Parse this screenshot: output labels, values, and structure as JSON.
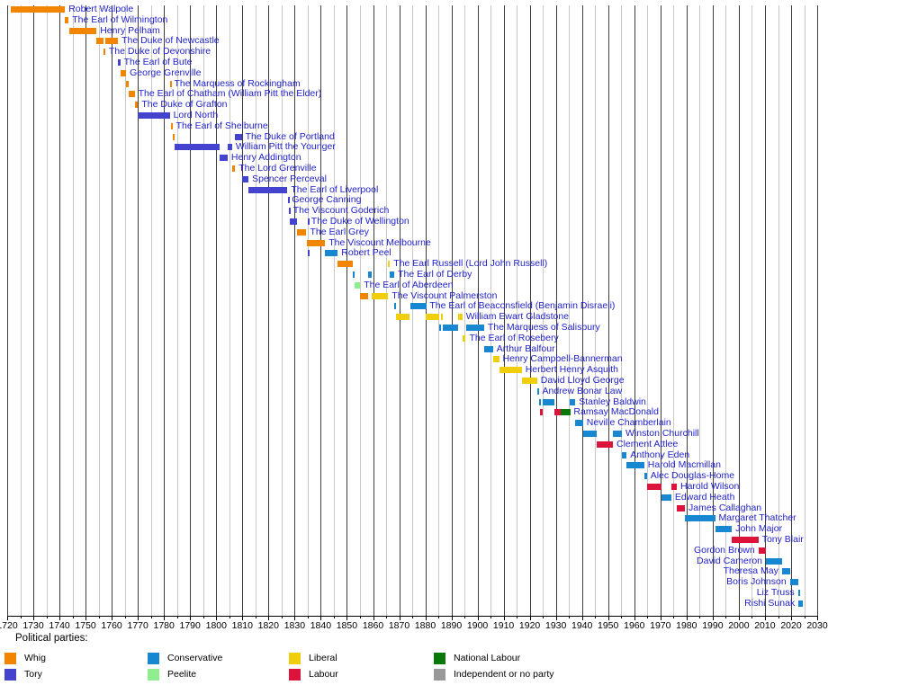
{
  "legend": {
    "title": "Political parties:",
    "items": [
      {
        "id": "whig",
        "label": "Whig",
        "color": "#F28500"
      },
      {
        "id": "tory",
        "label": "Tory",
        "color": "#4343CE"
      },
      {
        "id": "conservative",
        "label": "Conservative",
        "color": "#1787D2"
      },
      {
        "id": "peelite",
        "label": "Peelite",
        "color": "#90EE90"
      },
      {
        "id": "liberal",
        "label": "Liberal",
        "color": "#F0CE0C"
      },
      {
        "id": "labour",
        "label": "Labour",
        "color": "#DC143C"
      },
      {
        "id": "national-labour",
        "label": "National Labour",
        "color": "#087808"
      },
      {
        "id": "independent",
        "label": "Independent or no party",
        "color": "#999999"
      }
    ]
  },
  "chart_data": {
    "type": "timeline",
    "title": "",
    "xlabel": "",
    "ylabel": "",
    "x_axis": {
      "min": 1720,
      "max": 2030,
      "major_tick": 10,
      "minor_tick": 5,
      "tick_labels": [
        1720,
        1730,
        1740,
        1750,
        1760,
        1770,
        1780,
        1790,
        1800,
        1810,
        1820,
        1830,
        1840,
        1850,
        1860,
        1870,
        1880,
        1890,
        1900,
        1910,
        1920,
        1930,
        1940,
        1950,
        1960,
        1970,
        1980,
        1990,
        2000,
        2010,
        2020,
        2030
      ]
    },
    "grid": {
      "major_color": "#3d3d3d",
      "minor_color": "#c9c9c9"
    },
    "label_color": "#2222cc",
    "party_colors": {
      "Whig": "#F28500",
      "Tory": "#4343CE",
      "Conservative": "#1787D2",
      "Peelite": "#90EE90",
      "Liberal": "#F0CE0C",
      "Labour": "#DC143C",
      "National Labour": "#087808",
      "Independent or no party": "#999999"
    },
    "prime_ministers": [
      {
        "name": "Robert Walpole",
        "label_side": "right",
        "terms": [
          {
            "party": "Whig",
            "start": 1721.27,
            "end": 1742.1
          }
        ]
      },
      {
        "name": "The Earl of Wilmington",
        "label_side": "right",
        "terms": [
          {
            "party": "Whig",
            "start": 1742.12,
            "end": 1743.5
          }
        ]
      },
      {
        "name": "Henry Pelham",
        "label_side": "right",
        "terms": [
          {
            "party": "Whig",
            "start": 1743.65,
            "end": 1754.17
          }
        ]
      },
      {
        "name": "The Duke of Newcastle",
        "label_side": "right",
        "terms": [
          {
            "party": "Whig",
            "start": 1754.2,
            "end": 1756.85
          },
          {
            "party": "Whig",
            "start": 1757.5,
            "end": 1762.4
          }
        ]
      },
      {
        "name": "The Duke of Devonshire",
        "label_side": "right",
        "terms": [
          {
            "party": "Whig",
            "start": 1756.85,
            "end": 1757.5
          }
        ]
      },
      {
        "name": "The Earl of Bute",
        "label_side": "right",
        "terms": [
          {
            "party": "Tory",
            "start": 1762.4,
            "end": 1763.27
          }
        ]
      },
      {
        "name": "George Grenville",
        "label_side": "right",
        "terms": [
          {
            "party": "Whig",
            "start": 1763.28,
            "end": 1765.5
          }
        ]
      },
      {
        "name": "The Marquess of Rockingham",
        "label_side": "right",
        "terms": [
          {
            "party": "Whig",
            "start": 1765.55,
            "end": 1766.58
          },
          {
            "party": "Whig",
            "start": 1782.22,
            "end": 1782.5
          }
        ]
      },
      {
        "name": "The Earl of Chatham (William Pitt the Elder)",
        "label_side": "right",
        "terms": [
          {
            "party": "Whig",
            "start": 1766.58,
            "end": 1768.78
          }
        ]
      },
      {
        "name": "The Duke of Grafton",
        "label_side": "right",
        "terms": [
          {
            "party": "Whig",
            "start": 1768.78,
            "end": 1770.07
          }
        ]
      },
      {
        "name": "Lord North",
        "label_side": "right",
        "terms": [
          {
            "party": "Tory",
            "start": 1770.07,
            "end": 1782.22
          }
        ]
      },
      {
        "name": "The Earl of Shelburne",
        "label_side": "right",
        "terms": [
          {
            "party": "Whig",
            "start": 1782.5,
            "end": 1783.25
          }
        ]
      },
      {
        "name": "The Duke of Portland",
        "label_side": "right",
        "terms": [
          {
            "party": "Whig",
            "start": 1783.25,
            "end": 1783.95
          },
          {
            "party": "Tory",
            "start": 1807.25,
            "end": 1809.75
          }
        ]
      },
      {
        "name": "William Pitt the Younger",
        "label_side": "right",
        "terms": [
          {
            "party": "Tory",
            "start": 1783.95,
            "end": 1801.2
          },
          {
            "party": "Tory",
            "start": 1804.35,
            "end": 1806.07
          }
        ]
      },
      {
        "name": "Henry Addington",
        "label_side": "right",
        "terms": [
          {
            "party": "Tory",
            "start": 1801.2,
            "end": 1804.35
          }
        ]
      },
      {
        "name": "The Lord Grenville",
        "label_side": "right",
        "terms": [
          {
            "party": "Whig",
            "start": 1806.1,
            "end": 1807.23
          }
        ]
      },
      {
        "name": "Spencer Perceval",
        "label_side": "right",
        "terms": [
          {
            "party": "Tory",
            "start": 1809.75,
            "end": 1812.36
          }
        ]
      },
      {
        "name": "The Earl of Liverpool",
        "label_side": "right",
        "terms": [
          {
            "party": "Tory",
            "start": 1812.43,
            "end": 1827.27
          }
        ]
      },
      {
        "name": "George Canning",
        "label_side": "right",
        "terms": [
          {
            "party": "Tory",
            "start": 1827.28,
            "end": 1827.6
          }
        ]
      },
      {
        "name": "The Viscount Goderich",
        "label_side": "right",
        "terms": [
          {
            "party": "Tory",
            "start": 1827.65,
            "end": 1828.06
          }
        ]
      },
      {
        "name": "The Duke of Wellington",
        "label_side": "right",
        "terms": [
          {
            "party": "Tory",
            "start": 1828.06,
            "end": 1830.88
          },
          {
            "party": "Tory",
            "start": 1834.87,
            "end": 1834.96
          }
        ]
      },
      {
        "name": "The Earl Grey",
        "label_side": "right",
        "terms": [
          {
            "party": "Whig",
            "start": 1830.88,
            "end": 1834.53
          }
        ]
      },
      {
        "name": "The Viscount Melbourne",
        "label_side": "right",
        "terms": [
          {
            "party": "Whig",
            "start": 1834.54,
            "end": 1834.87
          },
          {
            "party": "Whig",
            "start": 1835.3,
            "end": 1841.66
          }
        ]
      },
      {
        "name": "Robert Peel",
        "label_side": "right",
        "terms": [
          {
            "party": "Tory",
            "start": 1834.94,
            "end": 1835.27
          },
          {
            "party": "Conservative",
            "start": 1841.66,
            "end": 1846.5
          }
        ]
      },
      {
        "name": "The Earl Russell (Lord John Russell)",
        "label_side": "right",
        "terms": [
          {
            "party": "Whig",
            "start": 1846.5,
            "end": 1852.15
          },
          {
            "party": "Liberal",
            "start": 1865.82,
            "end": 1866.5
          }
        ]
      },
      {
        "name": "The Earl of Derby",
        "label_side": "right",
        "terms": [
          {
            "party": "Conservative",
            "start": 1852.15,
            "end": 1852.97
          },
          {
            "party": "Conservative",
            "start": 1858.15,
            "end": 1859.45
          },
          {
            "party": "Conservative",
            "start": 1866.5,
            "end": 1868.15
          }
        ]
      },
      {
        "name": "The Earl of Aberdeen",
        "label_side": "right",
        "terms": [
          {
            "party": "Peelite",
            "start": 1852.97,
            "end": 1855.1
          }
        ]
      },
      {
        "name": "The Viscount Palmerston",
        "label_side": "right",
        "terms": [
          {
            "party": "Whig",
            "start": 1855.1,
            "end": 1858.15
          },
          {
            "party": "Liberal",
            "start": 1859.45,
            "end": 1865.8
          }
        ]
      },
      {
        "name": "The Earl of Beaconsfield (Benjamin Disraeli)",
        "label_side": "right",
        "terms": [
          {
            "party": "Conservative",
            "start": 1868.15,
            "end": 1868.92
          },
          {
            "party": "Conservative",
            "start": 1874.13,
            "end": 1880.32
          }
        ]
      },
      {
        "name": "William Ewart Gladstone",
        "label_side": "right",
        "terms": [
          {
            "party": "Liberal",
            "start": 1868.92,
            "end": 1874.13
          },
          {
            "party": "Liberal",
            "start": 1880.32,
            "end": 1885.45
          },
          {
            "party": "Liberal",
            "start": 1886.08,
            "end": 1886.55
          },
          {
            "party": "Liberal",
            "start": 1892.62,
            "end": 1894.17
          }
        ]
      },
      {
        "name": "The Marquess of Salisbury",
        "label_side": "right",
        "terms": [
          {
            "party": "Conservative",
            "start": 1885.45,
            "end": 1886.08
          },
          {
            "party": "Conservative",
            "start": 1886.55,
            "end": 1892.62
          },
          {
            "party": "Conservative",
            "start": 1895.48,
            "end": 1902.53
          }
        ]
      },
      {
        "name": "The Earl of Rosebery",
        "label_side": "right",
        "terms": [
          {
            "party": "Liberal",
            "start": 1894.17,
            "end": 1895.48
          }
        ]
      },
      {
        "name": "Arthur Balfour",
        "label_side": "right",
        "terms": [
          {
            "party": "Conservative",
            "start": 1902.53,
            "end": 1905.92
          }
        ]
      },
      {
        "name": "Henry Campbell-Bannerman",
        "label_side": "right",
        "terms": [
          {
            "party": "Liberal",
            "start": 1905.92,
            "end": 1908.25
          }
        ]
      },
      {
        "name": "Herbert Henry Asquith",
        "label_side": "right",
        "terms": [
          {
            "party": "Liberal",
            "start": 1908.27,
            "end": 1916.92
          }
        ]
      },
      {
        "name": "David Lloyd George",
        "label_side": "right",
        "terms": [
          {
            "party": "Liberal",
            "start": 1916.92,
            "end": 1922.8
          }
        ]
      },
      {
        "name": "Andrew Bonar Law",
        "label_side": "right",
        "terms": [
          {
            "party": "Conservative",
            "start": 1922.8,
            "end": 1923.4
          }
        ]
      },
      {
        "name": "Stanley Baldwin",
        "label_side": "right",
        "terms": [
          {
            "party": "Conservative",
            "start": 1923.4,
            "end": 1924.06
          },
          {
            "party": "Conservative",
            "start": 1924.85,
            "end": 1929.42
          },
          {
            "party": "Conservative",
            "start": 1935.43,
            "end": 1937.4
          }
        ]
      },
      {
        "name": "Ramsay MacDonald",
        "label_side": "right",
        "terms": [
          {
            "party": "Labour",
            "start": 1924.06,
            "end": 1924.84
          },
          {
            "party": "Labour",
            "start": 1929.42,
            "end": 1931.65
          },
          {
            "party": "National Labour",
            "start": 1931.65,
            "end": 1935.43
          }
        ]
      },
      {
        "name": "Neville Chamberlain",
        "label_side": "right",
        "terms": [
          {
            "party": "Conservative",
            "start": 1937.4,
            "end": 1940.37
          }
        ]
      },
      {
        "name": "Winston Churchill",
        "label_side": "right",
        "terms": [
          {
            "party": "Conservative",
            "start": 1940.37,
            "end": 1945.57
          },
          {
            "party": "Conservative",
            "start": 1951.82,
            "end": 1955.27
          }
        ]
      },
      {
        "name": "Clement Attlee",
        "label_side": "right",
        "terms": [
          {
            "party": "Labour",
            "start": 1945.57,
            "end": 1951.82
          }
        ]
      },
      {
        "name": "Anthony Eden",
        "label_side": "right",
        "terms": [
          {
            "party": "Conservative",
            "start": 1955.27,
            "end": 1957.05
          }
        ]
      },
      {
        "name": "Harold Macmillan",
        "label_side": "right",
        "terms": [
          {
            "party": "Conservative",
            "start": 1957.05,
            "end": 1963.8
          }
        ]
      },
      {
        "name": "Alec Douglas-Home",
        "label_side": "right",
        "terms": [
          {
            "party": "Conservative",
            "start": 1963.8,
            "end": 1964.8
          }
        ]
      },
      {
        "name": "Harold Wilson",
        "label_side": "right",
        "terms": [
          {
            "party": "Labour",
            "start": 1964.8,
            "end": 1970.47
          },
          {
            "party": "Labour",
            "start": 1974.17,
            "end": 1976.27
          }
        ]
      },
      {
        "name": "Edward Heath",
        "label_side": "right",
        "terms": [
          {
            "party": "Conservative",
            "start": 1970.47,
            "end": 1974.17
          }
        ]
      },
      {
        "name": "James Callaghan",
        "label_side": "right",
        "terms": [
          {
            "party": "Labour",
            "start": 1976.27,
            "end": 1979.35
          }
        ]
      },
      {
        "name": "Margaret Thatcher",
        "label_side": "right",
        "terms": [
          {
            "party": "Conservative",
            "start": 1979.35,
            "end": 1990.9
          }
        ]
      },
      {
        "name": "John Major",
        "label_side": "right",
        "terms": [
          {
            "party": "Conservative",
            "start": 1990.9,
            "end": 1997.33
          }
        ]
      },
      {
        "name": "Tony Blair",
        "label_side": "right",
        "terms": [
          {
            "party": "Labour",
            "start": 1997.33,
            "end": 2007.5
          }
        ]
      },
      {
        "name": "Gordon Brown",
        "label_side": "left",
        "terms": [
          {
            "party": "Labour",
            "start": 2007.5,
            "end": 2010.35
          }
        ]
      },
      {
        "name": "David Cameron",
        "label_side": "left",
        "terms": [
          {
            "party": "Conservative",
            "start": 2010.35,
            "end": 2016.54
          }
        ]
      },
      {
        "name": "Theresa May",
        "label_side": "left",
        "terms": [
          {
            "party": "Conservative",
            "start": 2016.54,
            "end": 2019.57
          }
        ]
      },
      {
        "name": "Boris Johnson",
        "label_side": "left",
        "terms": [
          {
            "party": "Conservative",
            "start": 2019.57,
            "end": 2022.68
          }
        ]
      },
      {
        "name": "Liz Truss",
        "label_side": "left",
        "terms": [
          {
            "party": "Conservative",
            "start": 2022.68,
            "end": 2022.82
          }
        ]
      },
      {
        "name": "Rishi Sunak",
        "label_side": "left",
        "terms": [
          {
            "party": "Conservative",
            "start": 2022.82,
            "end": 2024.52
          }
        ]
      }
    ]
  }
}
